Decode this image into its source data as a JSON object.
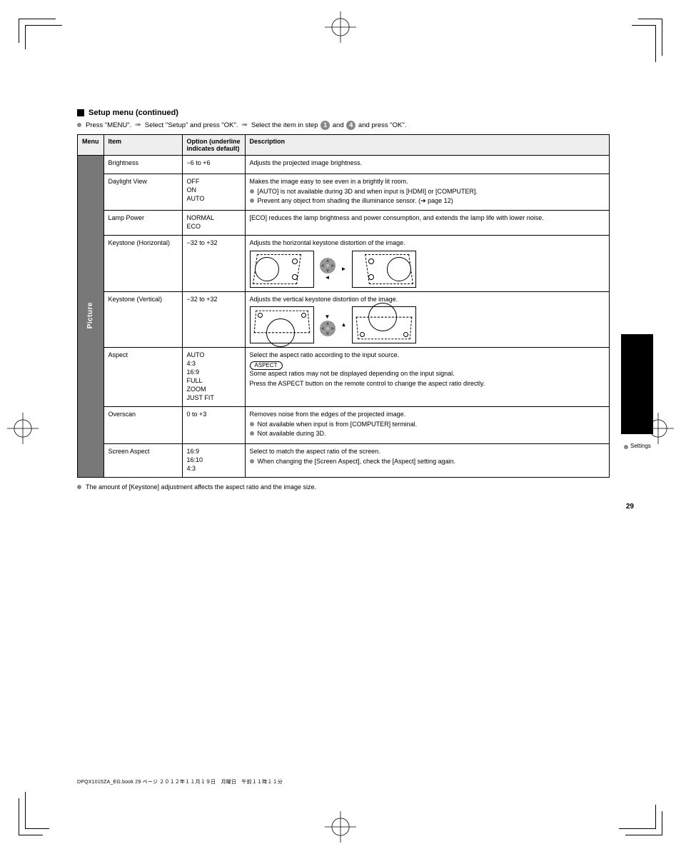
{
  "heading": "Setup menu (continued)",
  "intro_prefix": "Press \"MENU\".",
  "intro_arrow": "➠",
  "intro_mid": "Select \"Setup\" and press \"OK\".",
  "intro_suffix_a": "Select the item in step",
  "intro_suffix_b": "and",
  "intro_suffix_c": "and press \"OK\".",
  "thead": {
    "c1": "Menu",
    "c2": "Item",
    "c3": "Option (underline indicates default)",
    "c4": "Description"
  },
  "vcat": "Picture",
  "rows": [
    {
      "item": "Brightness",
      "opts": [
        "−6 to +6"
      ],
      "desc": [
        "Adjusts the projected image brightness."
      ],
      "bullets": [],
      "notes": [],
      "diag": null
    },
    {
      "item": "Daylight View",
      "opts": [
        "OFF",
        "ON",
        "AUTO"
      ],
      "desc": [
        "Makes the image easy to see even in a brightly lit room."
      ],
      "bullets": [
        "[AUTO] is not available during 3D and when input is [HDMI] or [COMPUTER].",
        "Prevent any object from shading the illuminance sensor. (➔ page 12)"
      ],
      "notes": [],
      "diag": null
    },
    {
      "item": "Lamp Power",
      "opts": [
        "NORMAL",
        "ECO"
      ],
      "desc": [
        "[ECO] reduces the lamp brightness and power consumption, and extends the lamp life with lower noise."
      ],
      "bullets": [],
      "notes": [],
      "diag": null
    },
    {
      "item": "Keystone (Horizontal)",
      "opts": [
        "−32 to +32"
      ],
      "desc": [
        "Adjusts the horizontal keystone distortion of the image."
      ],
      "bullets": [],
      "notes": [],
      "diag": {
        "type": "horizontal"
      }
    },
    {
      "item": "Keystone (Vertical)",
      "opts": [
        "−32 to +32"
      ],
      "desc": [
        "Adjusts the vertical keystone distortion of the image."
      ],
      "bullets": [],
      "notes": [],
      "diag": {
        "type": "vertical"
      }
    },
    {
      "item": "Aspect",
      "opts": [
        "AUTO",
        "4:3",
        "16:9",
        "FULL",
        "ZOOM",
        "JUST FIT"
      ],
      "desc": [
        "Select the aspect ratio according to the input source."
      ],
      "bullets": [],
      "notes": [
        "Some aspect ratios may not be displayed depending on the input signal.",
        "Press the ASPECT button on the remote control to change the aspect ratio directly."
      ],
      "pill": "ASPECT",
      "diag": null
    },
    {
      "item": "Overscan",
      "opts": [
        "0 to +3"
      ],
      "desc": [
        "Removes noise from the edges of the projected image."
      ],
      "bullets": [
        "Not available when input is from [COMPUTER] terminal.",
        "Not available during 3D."
      ],
      "notes": [],
      "diag": null
    },
    {
      "item": "Screen Aspect",
      "opts": [
        "16:9",
        "16:10",
        "4:3"
      ],
      "desc": [
        "Select to match the aspect ratio of the screen."
      ],
      "bullets": [
        "When changing the [Screen Aspect], check the [Aspect] setting again."
      ],
      "notes": [],
      "diag": null
    }
  ],
  "footnote": "The amount of [Keystone] adjustment affects the aspect ratio and the image size.",
  "sidetab": "Settings",
  "pagenum": "29",
  "filepath": "DPQX1015ZA_EG.book  29 ページ  ２０１２年１１月１９日　月曜日　午前１１時１１分",
  "colors": {
    "grey": "#888888",
    "header_bg": "#eeeeee",
    "vcat_bg": "#787878"
  }
}
